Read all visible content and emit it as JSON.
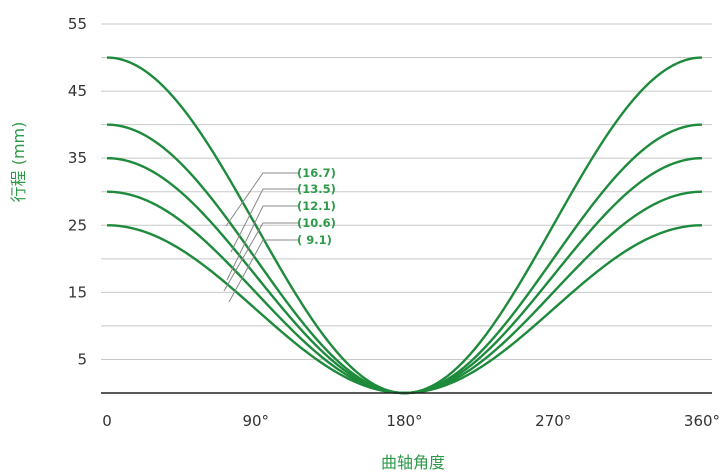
{
  "chart_data": {
    "type": "line",
    "xlabel": "曲轴角度",
    "ylabel": "行程 (mm)",
    "xlim": [
      0,
      360
    ],
    "ylim": [
      0,
      55
    ],
    "x_ticks": [
      {
        "value": 0,
        "label": "0"
      },
      {
        "value": 90,
        "label": "90°"
      },
      {
        "value": 180,
        "label": "180°"
      },
      {
        "value": 270,
        "label": "270°"
      },
      {
        "value": 360,
        "label": "360°"
      }
    ],
    "y_ticks": [
      5,
      15,
      25,
      35,
      45,
      55
    ],
    "grid": {
      "horizontal": true,
      "vertical": false,
      "step": 5
    },
    "line_color": "#1e8a3c",
    "series": [
      {
        "stroke": 50,
        "x": [
          0,
          45,
          90,
          135,
          180,
          225,
          270,
          315,
          360
        ],
        "y": [
          50,
          42.7,
          25,
          7.3,
          0,
          7.3,
          25,
          42.7,
          50
        ]
      },
      {
        "stroke": 40,
        "x": [
          0,
          45,
          90,
          135,
          180,
          225,
          270,
          315,
          360
        ],
        "y": [
          40,
          34.1,
          20,
          5.9,
          0,
          5.9,
          20,
          34.1,
          40
        ]
      },
      {
        "stroke": 35,
        "x": [
          0,
          45,
          90,
          135,
          180,
          225,
          270,
          315,
          360
        ],
        "y": [
          35,
          29.9,
          17.5,
          5.1,
          0,
          5.1,
          17.5,
          29.9,
          35
        ]
      },
      {
        "stroke": 30,
        "x": [
          0,
          45,
          90,
          135,
          180,
          225,
          270,
          315,
          360
        ],
        "y": [
          30,
          25.6,
          15,
          4.4,
          0,
          4.4,
          15,
          25.6,
          30
        ]
      },
      {
        "stroke": 25,
        "x": [
          0,
          45,
          90,
          135,
          180,
          225,
          270,
          315,
          360
        ],
        "y": [
          25,
          21.3,
          12.5,
          3.7,
          0,
          3.7,
          12.5,
          21.3,
          25
        ]
      }
    ],
    "annotations": [
      "(16.7)",
      "(13.5)",
      "(12.1)",
      "(10.6)",
      "( 9.1)"
    ]
  }
}
